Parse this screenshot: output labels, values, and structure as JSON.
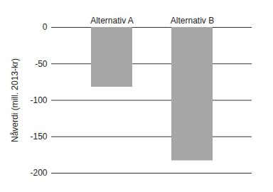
{
  "chart_data": {
    "type": "bar",
    "categories": [
      "Alternativ A",
      "Alternativ B"
    ],
    "values": [
      -82,
      -183
    ],
    "color": "#a6a6a6",
    "y_label": "Nåverdi (mill. 2013-kr)",
    "ylim": [
      -200,
      0
    ],
    "yticks": [
      0,
      -50,
      -100,
      -150,
      -200
    ],
    "grid": true
  }
}
